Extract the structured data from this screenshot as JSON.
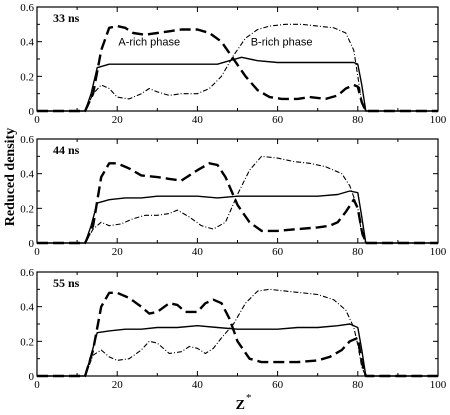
{
  "figure": {
    "ylabel": "Reduced density",
    "xlabel_main": "Z",
    "xlabel_sup": "*"
  },
  "chart_data": [
    {
      "type": "line",
      "panel_label": "33 ns",
      "xlim": [
        0,
        100
      ],
      "ylim": [
        0,
        0.6
      ],
      "xticks": [
        0,
        20,
        40,
        60,
        80,
        100
      ],
      "yticks": [
        0,
        0.2,
        0.4,
        0.6
      ],
      "annotations": [
        {
          "text": "A-rich phase",
          "x": 28,
          "y": 0.4
        },
        {
          "text": "B-rich phase",
          "x": 61,
          "y": 0.4
        }
      ],
      "series": [
        {
          "style": "solid",
          "points": [
            [
              0,
              0
            ],
            [
              12,
              0
            ],
            [
              13.5,
              0.1
            ],
            [
              15,
              0.25
            ],
            [
              18,
              0.27
            ],
            [
              25,
              0.27
            ],
            [
              30,
              0.27
            ],
            [
              35,
              0.27
            ],
            [
              40,
              0.27
            ],
            [
              45,
              0.27
            ],
            [
              48,
              0.29
            ],
            [
              51,
              0.31
            ],
            [
              55,
              0.29
            ],
            [
              60,
              0.28
            ],
            [
              65,
              0.28
            ],
            [
              70,
              0.28
            ],
            [
              75,
              0.28
            ],
            [
              79,
              0.28
            ],
            [
              80,
              0.27
            ],
            [
              81,
              0.15
            ],
            [
              82,
              0
            ],
            [
              100,
              0
            ]
          ]
        },
        {
          "style": "dashed",
          "points": [
            [
              0,
              0
            ],
            [
              12,
              0
            ],
            [
              14,
              0.1
            ],
            [
              16,
              0.35
            ],
            [
              18,
              0.48
            ],
            [
              20,
              0.49
            ],
            [
              22,
              0.48
            ],
            [
              24,
              0.45
            ],
            [
              27,
              0.44
            ],
            [
              30,
              0.45
            ],
            [
              33,
              0.46
            ],
            [
              36,
              0.47
            ],
            [
              40,
              0.47
            ],
            [
              43,
              0.45
            ],
            [
              46,
              0.4
            ],
            [
              49,
              0.3
            ],
            [
              52,
              0.2
            ],
            [
              55,
              0.12
            ],
            [
              58,
              0.08
            ],
            [
              61,
              0.07
            ],
            [
              65,
              0.07
            ],
            [
              68,
              0.08
            ],
            [
              72,
              0.07
            ],
            [
              75,
              0.09
            ],
            [
              77,
              0.13
            ],
            [
              79,
              0.15
            ],
            [
              80,
              0.14
            ],
            [
              81,
              0.05
            ],
            [
              82,
              0
            ],
            [
              100,
              0
            ]
          ]
        },
        {
          "style": "dash-dot",
          "points": [
            [
              0,
              0
            ],
            [
              12,
              0
            ],
            [
              14,
              0.1
            ],
            [
              16,
              0.15
            ],
            [
              18,
              0.13
            ],
            [
              20,
              0.08
            ],
            [
              23,
              0.07
            ],
            [
              26,
              0.1
            ],
            [
              28,
              0.13
            ],
            [
              30,
              0.11
            ],
            [
              33,
              0.09
            ],
            [
              36,
              0.1
            ],
            [
              40,
              0.1
            ],
            [
              43,
              0.13
            ],
            [
              46,
              0.2
            ],
            [
              49,
              0.32
            ],
            [
              52,
              0.42
            ],
            [
              55,
              0.47
            ],
            [
              58,
              0.49
            ],
            [
              62,
              0.5
            ],
            [
              66,
              0.5
            ],
            [
              70,
              0.49
            ],
            [
              74,
              0.48
            ],
            [
              77,
              0.45
            ],
            [
              79,
              0.35
            ],
            [
              80,
              0.2
            ],
            [
              81,
              0.05
            ],
            [
              82,
              0
            ],
            [
              100,
              0
            ]
          ]
        }
      ]
    },
    {
      "type": "line",
      "panel_label": "44 ns",
      "xlim": [
        0,
        100
      ],
      "ylim": [
        0,
        0.6
      ],
      "xticks": [
        0,
        20,
        40,
        60,
        80,
        100
      ],
      "yticks": [
        0,
        0.2,
        0.4,
        0.6
      ],
      "annotations": [],
      "series": [
        {
          "style": "solid",
          "points": [
            [
              0,
              0
            ],
            [
              12,
              0
            ],
            [
              13.5,
              0.1
            ],
            [
              15,
              0.23
            ],
            [
              18,
              0.25
            ],
            [
              22,
              0.26
            ],
            [
              26,
              0.26
            ],
            [
              30,
              0.27
            ],
            [
              35,
              0.27
            ],
            [
              40,
              0.27
            ],
            [
              45,
              0.26
            ],
            [
              50,
              0.27
            ],
            [
              55,
              0.27
            ],
            [
              60,
              0.27
            ],
            [
              65,
              0.27
            ],
            [
              70,
              0.27
            ],
            [
              75,
              0.28
            ],
            [
              78,
              0.3
            ],
            [
              80,
              0.29
            ],
            [
              81,
              0.15
            ],
            [
              82,
              0
            ],
            [
              100,
              0
            ]
          ]
        },
        {
          "style": "dashed",
          "points": [
            [
              0,
              0
            ],
            [
              12,
              0
            ],
            [
              14,
              0.1
            ],
            [
              16,
              0.38
            ],
            [
              18,
              0.46
            ],
            [
              20,
              0.46
            ],
            [
              23,
              0.43
            ],
            [
              26,
              0.39
            ],
            [
              30,
              0.38
            ],
            [
              33,
              0.37
            ],
            [
              36,
              0.36
            ],
            [
              40,
              0.42
            ],
            [
              43,
              0.46
            ],
            [
              45,
              0.45
            ],
            [
              47,
              0.38
            ],
            [
              50,
              0.22
            ],
            [
              53,
              0.12
            ],
            [
              56,
              0.07
            ],
            [
              60,
              0.07
            ],
            [
              65,
              0.08
            ],
            [
              70,
              0.09
            ],
            [
              73,
              0.1
            ],
            [
              75,
              0.12
            ],
            [
              77,
              0.18
            ],
            [
              79,
              0.25
            ],
            [
              80,
              0.2
            ],
            [
              81,
              0.07
            ],
            [
              82,
              0
            ],
            [
              100,
              0
            ]
          ]
        },
        {
          "style": "dash-dot",
          "points": [
            [
              0,
              0
            ],
            [
              12,
              0
            ],
            [
              14,
              0.08
            ],
            [
              16,
              0.12
            ],
            [
              18,
              0.1
            ],
            [
              21,
              0.11
            ],
            [
              24,
              0.14
            ],
            [
              27,
              0.16
            ],
            [
              30,
              0.16
            ],
            [
              33,
              0.17
            ],
            [
              35,
              0.19
            ],
            [
              38,
              0.15
            ],
            [
              41,
              0.1
            ],
            [
              44,
              0.08
            ],
            [
              47,
              0.12
            ],
            [
              50,
              0.28
            ],
            [
              53,
              0.42
            ],
            [
              56,
              0.5
            ],
            [
              60,
              0.49
            ],
            [
              64,
              0.47
            ],
            [
              68,
              0.46
            ],
            [
              72,
              0.44
            ],
            [
              76,
              0.4
            ],
            [
              78,
              0.33
            ],
            [
              80,
              0.2
            ],
            [
              81,
              0.05
            ],
            [
              82,
              0
            ],
            [
              100,
              0
            ]
          ]
        }
      ]
    },
    {
      "type": "line",
      "panel_label": "55 ns",
      "xlim": [
        0,
        100
      ],
      "ylim": [
        0,
        0.6
      ],
      "xticks": [
        0,
        20,
        40,
        60,
        80,
        100
      ],
      "yticks": [
        0,
        0.2,
        0.4,
        0.6
      ],
      "annotations": [],
      "series": [
        {
          "style": "solid",
          "points": [
            [
              0,
              0
            ],
            [
              12,
              0
            ],
            [
              13.5,
              0.12
            ],
            [
              15,
              0.25
            ],
            [
              18,
              0.26
            ],
            [
              22,
              0.27
            ],
            [
              26,
              0.27
            ],
            [
              30,
              0.28
            ],
            [
              35,
              0.28
            ],
            [
              40,
              0.29
            ],
            [
              45,
              0.28
            ],
            [
              50,
              0.27
            ],
            [
              55,
              0.27
            ],
            [
              60,
              0.27
            ],
            [
              65,
              0.28
            ],
            [
              70,
              0.28
            ],
            [
              75,
              0.29
            ],
            [
              78,
              0.3
            ],
            [
              80,
              0.28
            ],
            [
              81,
              0.15
            ],
            [
              82,
              0
            ],
            [
              100,
              0
            ]
          ]
        },
        {
          "style": "dashed",
          "points": [
            [
              0,
              0
            ],
            [
              12,
              0
            ],
            [
              14,
              0.15
            ],
            [
              16,
              0.4
            ],
            [
              18,
              0.48
            ],
            [
              20,
              0.48
            ],
            [
              23,
              0.45
            ],
            [
              26,
              0.4
            ],
            [
              28,
              0.36
            ],
            [
              30,
              0.37
            ],
            [
              33,
              0.42
            ],
            [
              35,
              0.41
            ],
            [
              37,
              0.37
            ],
            [
              40,
              0.37
            ],
            [
              42,
              0.42
            ],
            [
              44,
              0.44
            ],
            [
              46,
              0.42
            ],
            [
              48,
              0.33
            ],
            [
              50,
              0.2
            ],
            [
              53,
              0.1
            ],
            [
              56,
              0.08
            ],
            [
              60,
              0.08
            ],
            [
              65,
              0.08
            ],
            [
              70,
              0.09
            ],
            [
              73,
              0.11
            ],
            [
              76,
              0.15
            ],
            [
              78,
              0.2
            ],
            [
              80,
              0.22
            ],
            [
              81,
              0.08
            ],
            [
              82,
              0
            ],
            [
              100,
              0
            ]
          ]
        },
        {
          "style": "dash-dot",
          "points": [
            [
              0,
              0
            ],
            [
              12,
              0
            ],
            [
              14,
              0.12
            ],
            [
              16,
              0.15
            ],
            [
              18,
              0.11
            ],
            [
              20,
              0.09
            ],
            [
              23,
              0.1
            ],
            [
              26,
              0.15
            ],
            [
              28,
              0.2
            ],
            [
              30,
              0.19
            ],
            [
              33,
              0.13
            ],
            [
              36,
              0.14
            ],
            [
              38,
              0.17
            ],
            [
              40,
              0.16
            ],
            [
              42,
              0.13
            ],
            [
              44,
              0.16
            ],
            [
              46,
              0.22
            ],
            [
              49,
              0.3
            ],
            [
              52,
              0.42
            ],
            [
              55,
              0.49
            ],
            [
              58,
              0.5
            ],
            [
              62,
              0.49
            ],
            [
              66,
              0.48
            ],
            [
              70,
              0.47
            ],
            [
              74,
              0.44
            ],
            [
              77,
              0.38
            ],
            [
              79,
              0.28
            ],
            [
              80,
              0.18
            ],
            [
              81,
              0.05
            ],
            [
              82,
              0
            ],
            [
              100,
              0
            ]
          ]
        }
      ]
    }
  ]
}
